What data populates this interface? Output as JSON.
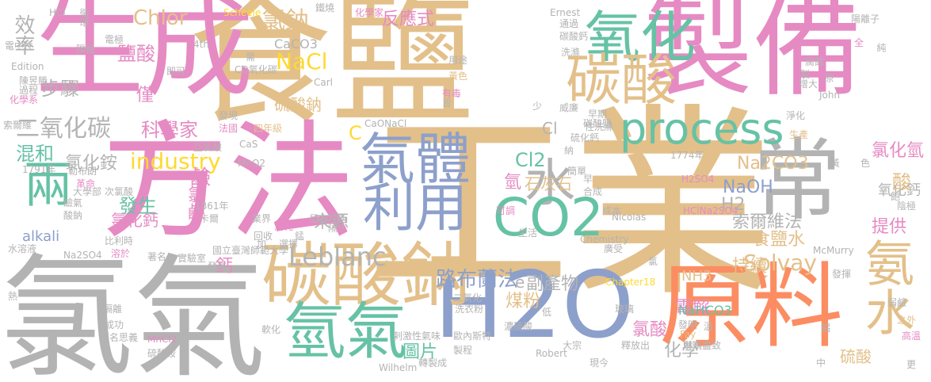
{
  "palette": {
    "tan": "#e3c08a",
    "pink": "#e68ac3",
    "gray": "#b3b3b3",
    "green": "#66c2a5",
    "blue": "#8da0cb",
    "orange": "#fc8d62",
    "lime": "#a6d854",
    "yellow": "#ffd92f"
  },
  "words": [
    {
      "text": "工業",
      "color": "tan"
    },
    {
      "text": "食鹽",
      "color": "tan"
    },
    {
      "text": "氯氣",
      "color": "gray"
    },
    {
      "text": "方法",
      "color": "pink"
    },
    {
      "text": "生成",
      "color": "pink"
    },
    {
      "text": "製備",
      "color": "pink"
    },
    {
      "text": "H2O",
      "color": "blue"
    },
    {
      "text": "原料",
      "color": "orange"
    },
    {
      "text": "碳酸鈉",
      "color": "tan"
    },
    {
      "text": "常",
      "color": "gray"
    },
    {
      "text": "氧化",
      "color": "green"
    },
    {
      "text": "碳酸",
      "color": "tan"
    },
    {
      "text": "process",
      "color": "green"
    },
    {
      "text": "氣體",
      "color": "blue"
    },
    {
      "text": "利用",
      "color": "blue"
    },
    {
      "text": "水",
      "color": "gray"
    },
    {
      "text": "CO2",
      "color": "green"
    },
    {
      "text": "氫氣",
      "color": "green"
    },
    {
      "text": "氨水",
      "color": "tan"
    },
    {
      "text": "兩",
      "color": "green"
    },
    {
      "text": "氯鈉",
      "color": "tan"
    },
    {
      "text": "Leblanc",
      "color": "gray"
    },
    {
      "text": "路布蘭法",
      "color": "blue"
    },
    {
      "text": "Solvay",
      "color": "tan"
    },
    {
      "text": "industry",
      "color": "yellow"
    },
    {
      "text": "NaCl",
      "color": "yellow"
    },
    {
      "text": "二氧化碳",
      "color": "gray"
    },
    {
      "text": "混和",
      "color": "green"
    },
    {
      "text": "步驟",
      "color": "gray"
    },
    {
      "text": "Chlor",
      "color": "tan"
    },
    {
      "text": "效率",
      "color": "gray"
    },
    {
      "text": "鹽酸",
      "color": "pink"
    },
    {
      "text": "反應式",
      "color": "pink"
    },
    {
      "text": "Cl2",
      "color": "green"
    },
    {
      "text": "NaOH",
      "color": "blue"
    },
    {
      "text": "H2",
      "color": "gray"
    },
    {
      "text": "食鹽水",
      "color": "tan"
    },
    {
      "text": "索爾維法",
      "color": "gray"
    },
    {
      "text": "科學家",
      "color": "pink"
    },
    {
      "text": "氯化氫",
      "color": "pink"
    },
    {
      "text": "Na2CO3",
      "color": "tan"
    },
    {
      "text": "電解",
      "color": "pink"
    },
    {
      "text": "氯酸",
      "color": "pink"
    },
    {
      "text": "煤粉",
      "color": "tan"
    },
    {
      "text": "圖片",
      "color": "green"
    },
    {
      "text": "化學",
      "color": "gray"
    },
    {
      "text": "副產物",
      "color": "gray"
    },
    {
      "text": "石灰石",
      "color": "tan"
    },
    {
      "text": "來源",
      "color": "gray"
    },
    {
      "text": "氯化銨",
      "color": "gray"
    },
    {
      "text": "發生",
      "color": "green"
    },
    {
      "text": "氯化鈣",
      "color": "pink"
    },
    {
      "text": "alkali",
      "color": "blue"
    },
    {
      "text": "氯鹼",
      "color": "pink"
    },
    {
      "text": "硫酸鈉",
      "color": "tan"
    },
    {
      "text": "持續",
      "color": "tan"
    },
    {
      "text": "提供",
      "color": "pink"
    },
    {
      "text": "氧化鈣",
      "color": "gray"
    },
    {
      "text": "NaHCO3",
      "color": "green"
    },
    {
      "text": "NH3",
      "color": "tan"
    },
    {
      "text": "CaCO3",
      "color": "gray"
    },
    {
      "text": "僅",
      "color": "pink"
    },
    {
      "text": "鹼",
      "color": "pink"
    },
    {
      "text": "鈣",
      "color": "pink"
    },
    {
      "text": "氫",
      "color": "pink"
    },
    {
      "text": "硫酸",
      "color": "tan"
    },
    {
      "text": "酸",
      "color": "tan"
    },
    {
      "text": "C",
      "color": "yellow"
    },
    {
      "text": "Cl",
      "color": "gray"
    },
    {
      "text": "e",
      "color": "gray"
    },
    {
      "text": "HCl",
      "color": "gray"
    },
    {
      "text": "循環",
      "color": "gray"
    },
    {
      "text": "Scheele",
      "color": "yellow"
    },
    {
      "text": "化學家",
      "color": "pink"
    },
    {
      "text": "鐵燒",
      "color": "gray"
    },
    {
      "text": "Ernest",
      "color": "gray"
    },
    {
      "text": "碳酸鈣",
      "color": "gray"
    },
    {
      "text": "通過",
      "color": "gray"
    },
    {
      "text": "陽離子",
      "color": "gray"
    },
    {
      "text": "全",
      "color": "pink"
    },
    {
      "text": "純",
      "color": "gray"
    },
    {
      "text": "電極",
      "color": "gray"
    },
    {
      "text": "4th",
      "color": "gray"
    },
    {
      "text": "電中性",
      "color": "gray"
    },
    {
      "text": "陽極",
      "color": "gray"
    },
    {
      "text": "即可",
      "color": "gray"
    },
    {
      "text": "Edition",
      "color": "gray"
    },
    {
      "text": "陳昱勝",
      "color": "gray"
    },
    {
      "text": "過程",
      "color": "gray"
    },
    {
      "text": "化學系",
      "color": "pink"
    },
    {
      "text": "索爾維",
      "color": "gray"
    },
    {
      "text": "用途",
      "color": "gray"
    },
    {
      "text": "黃色",
      "color": "tan"
    },
    {
      "text": "有毒",
      "color": "pink"
    },
    {
      "text": "皆",
      "color": "gray"
    },
    {
      "text": "少",
      "color": "gray"
    },
    {
      "text": "威廉",
      "color": "gray"
    },
    {
      "text": "早期",
      "color": "gray"
    },
    {
      "text": "增大",
      "color": "gray"
    },
    {
      "text": "洗滌",
      "color": "gray"
    },
    {
      "text": "John",
      "color": "gray"
    },
    {
      "text": "原",
      "color": "gray"
    },
    {
      "text": "淨化",
      "color": "gray"
    },
    {
      "text": "生產",
      "color": "tan"
    },
    {
      "text": "Carl",
      "color": "gray"
    },
    {
      "text": "需",
      "color": "gray"
    },
    {
      "text": "CO氧化碳",
      "color": "gray"
    },
    {
      "text": "發現",
      "color": "gray"
    },
    {
      "text": "法國",
      "color": "pink"
    },
    {
      "text": "四年級",
      "color": "tan"
    },
    {
      "text": "CaONaCl",
      "color": "gray"
    },
    {
      "text": "亞氯酸",
      "color": "gray"
    },
    {
      "text": "CaS",
      "color": "gray"
    },
    {
      "text": "MnO2",
      "color": "gray"
    },
    {
      "text": "1791年",
      "color": "gray"
    },
    {
      "text": "勒布朗",
      "color": "gray"
    },
    {
      "text": "革命",
      "color": "pink"
    },
    {
      "text": "大學部",
      "color": "gray"
    },
    {
      "text": "鹼氣",
      "color": "gray"
    },
    {
      "text": "酸鈉",
      "color": "gray"
    },
    {
      "text": "1861年",
      "color": "gray"
    },
    {
      "text": "卡爾",
      "color": "gray"
    },
    {
      "text": "次氯酸",
      "color": "gray"
    },
    {
      "text": "比利時",
      "color": "gray"
    },
    {
      "text": "溶於",
      "color": "pink"
    },
    {
      "text": "水溶液",
      "color": "gray"
    },
    {
      "text": "Na2SO4",
      "color": "gray"
    },
    {
      "text": "實驗室",
      "color": "gray"
    },
    {
      "text": "著名",
      "color": "gray"
    },
    {
      "text": "國立臺灣師範大學",
      "color": "gray"
    },
    {
      "text": "業界",
      "color": "gray"
    },
    {
      "text": "消耗",
      "color": "pink"
    },
    {
      "text": "尼古拉斯",
      "color": "gray"
    },
    {
      "text": "錳",
      "color": "gray"
    },
    {
      "text": "隔",
      "color": "gray"
    },
    {
      "text": "回收",
      "color": "gray"
    },
    {
      "text": "加",
      "color": "gray"
    },
    {
      "text": "選擇",
      "color": "gray"
    },
    {
      "text": "發展",
      "color": "gray"
    },
    {
      "text": "隔離",
      "color": "gray"
    },
    {
      "text": "成功",
      "color": "gray"
    },
    {
      "text": "顧名思義",
      "color": "gray"
    },
    {
      "text": "MnCl2",
      "color": "pink"
    },
    {
      "text": "硫酸銨",
      "color": "gray"
    },
    {
      "text": "軟化",
      "color": "gray"
    },
    {
      "text": "剌激性氣味",
      "color": "gray"
    },
    {
      "text": "洗衣粉",
      "color": "gray"
    },
    {
      "text": "二氧化",
      "color": "gray"
    },
    {
      "text": "濃硫酸",
      "color": "gray"
    },
    {
      "text": "低",
      "color": "gray"
    },
    {
      "text": "歐內斯特",
      "color": "gray"
    },
    {
      "text": "製程",
      "color": "gray"
    },
    {
      "text": "Robert",
      "color": "gray"
    },
    {
      "text": "轉製成",
      "color": "gray"
    },
    {
      "text": "Wilhelm",
      "color": "gray"
    },
    {
      "text": "大宗",
      "color": "gray"
    },
    {
      "text": "現今",
      "color": "gray"
    },
    {
      "text": "玻璃",
      "color": "gray"
    },
    {
      "text": "釋放出",
      "color": "gray"
    },
    {
      "text": "發明",
      "color": "gray"
    },
    {
      "text": "Fay",
      "color": "tan"
    },
    {
      "text": "溫",
      "color": "gray"
    },
    {
      "text": "淋漓盡致",
      "color": "gray"
    },
    {
      "text": "Chapter18",
      "color": "yellow"
    },
    {
      "text": "廣受",
      "color": "gray"
    },
    {
      "text": "氯",
      "color": "gray"
    },
    {
      "text": "McMurry",
      "color": "gray"
    },
    {
      "text": "發揮",
      "color": "gray"
    },
    {
      "text": "弱鹼",
      "color": "gray"
    },
    {
      "text": "熱",
      "color": "gray"
    },
    {
      "text": "鋁",
      "color": "gray"
    },
    {
      "text": "之外",
      "color": "tan"
    },
    {
      "text": "高溫",
      "color": "pink"
    },
    {
      "text": "更",
      "color": "gray"
    },
    {
      "text": "中",
      "color": "gray"
    },
    {
      "text": "Nicolas",
      "color": "gray"
    },
    {
      "text": "Chemistry",
      "color": "gray"
    },
    {
      "text": "成本",
      "color": "gray"
    },
    {
      "text": "生活",
      "color": "gray"
    },
    {
      "text": "可調",
      "color": "pink"
    },
    {
      "text": "合成",
      "color": "gray"
    },
    {
      "text": "早",
      "color": "gray"
    },
    {
      "text": "H2SO4",
      "color": "pink"
    },
    {
      "text": "HClNa2SO4",
      "color": "pink"
    },
    {
      "text": "1774年",
      "color": "gray"
    },
    {
      "text": "陰極",
      "color": "gray"
    },
    {
      "text": "飽",
      "color": "gray"
    },
    {
      "text": "黃",
      "color": "gray"
    },
    {
      "text": "色",
      "color": "gray"
    },
    {
      "text": "簡單",
      "color": "gray"
    },
    {
      "text": "碳酸鹽",
      "color": "gray"
    },
    {
      "text": "硫化鈣",
      "color": "gray"
    },
    {
      "text": "性洗滌",
      "color": "gray"
    },
    {
      "text": "納",
      "color": "gray"
    },
    {
      "text": "腐蝕",
      "color": "gray"
    },
    {
      "text": "製",
      "color": "gray"
    }
  ]
}
